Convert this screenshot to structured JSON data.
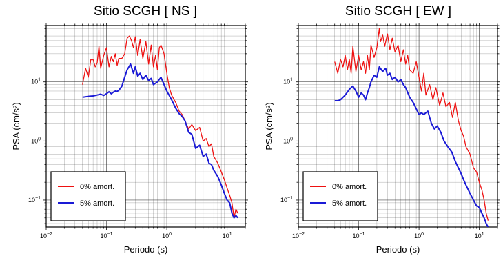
{
  "chart_data": [
    {
      "type": "line",
      "title": "Sitio SCGH [ NS ]",
      "xlabel": "Periodo (s)",
      "ylabel": "PSA (cm/s²)",
      "xscale": "log",
      "yscale": "log",
      "xlim": [
        0.01,
        20
      ],
      "ylim": [
        0.035,
        90
      ],
      "grid": true,
      "legend_position": "bottom-left",
      "x_ticks": [
        {
          "base": "10",
          "exp": "−2"
        },
        {
          "base": "10",
          "exp": "−1"
        },
        {
          "base": "10",
          "exp": "0"
        },
        {
          "base": "10",
          "exp": "1"
        }
      ],
      "y_ticks": [
        {
          "value": 0.1,
          "base": "10",
          "exp": "−1"
        },
        {
          "value": 1,
          "base": "10",
          "exp": "0"
        },
        {
          "value": 10,
          "base": "10",
          "exp": "1"
        }
      ],
      "series": [
        {
          "name": "0% amort.",
          "color": "#ee1111",
          "x": [
            0.04,
            0.045,
            0.05,
            0.055,
            0.06,
            0.065,
            0.07,
            0.075,
            0.08,
            0.09,
            0.1,
            0.11,
            0.12,
            0.13,
            0.14,
            0.15,
            0.16,
            0.18,
            0.2,
            0.22,
            0.24,
            0.26,
            0.28,
            0.3,
            0.33,
            0.36,
            0.4,
            0.45,
            0.5,
            0.55,
            0.6,
            0.65,
            0.7,
            0.75,
            0.8,
            0.9,
            1.0,
            1.1,
            1.2,
            1.4,
            1.6,
            1.8,
            2.0,
            2.3,
            2.6,
            3.0,
            3.5,
            4.0,
            4.5,
            5.0,
            5.5,
            6.0,
            7.0,
            8.0,
            9.0,
            10.0,
            11.0,
            12.0,
            13.0,
            14.0,
            15.0
          ],
          "y": [
            9,
            17,
            12,
            24,
            24,
            18,
            21,
            40,
            17,
            28,
            38,
            18,
            27,
            22,
            30,
            19,
            25,
            25,
            30,
            55,
            60,
            50,
            38,
            58,
            28,
            52,
            25,
            48,
            20,
            42,
            18,
            28,
            16,
            38,
            42,
            30,
            14,
            8,
            6,
            4.5,
            3.2,
            2.8,
            2.2,
            1.6,
            1.9,
            1.5,
            1.7,
            1.0,
            1.1,
            0.8,
            0.9,
            0.55,
            0.42,
            0.3,
            0.22,
            0.16,
            0.12,
            0.09,
            0.05,
            0.07,
            0.06
          ]
        },
        {
          "name": "5% amort.",
          "color": "#1a1ad6",
          "x": [
            0.04,
            0.05,
            0.06,
            0.07,
            0.08,
            0.09,
            0.1,
            0.11,
            0.12,
            0.13,
            0.14,
            0.15,
            0.16,
            0.18,
            0.2,
            0.22,
            0.25,
            0.28,
            0.3,
            0.33,
            0.36,
            0.4,
            0.45,
            0.5,
            0.55,
            0.6,
            0.7,
            0.8,
            0.9,
            1.0,
            1.2,
            1.4,
            1.6,
            1.8,
            2.0,
            2.3,
            2.6,
            3.0,
            3.5,
            4.0,
            4.5,
            5.0,
            5.5,
            6.0,
            7.0,
            8.0,
            9.0,
            10.0,
            11.0,
            12.0,
            13.0,
            14.0,
            15.0
          ],
          "y": [
            5.5,
            5.7,
            5.8,
            6.0,
            6.2,
            5.9,
            6.3,
            6.8,
            6.3,
            6.7,
            7.0,
            6.9,
            7.2,
            8.5,
            12.0,
            16.0,
            20.0,
            14.0,
            18.0,
            12.5,
            14.0,
            11.0,
            13.0,
            10.5,
            11.5,
            9.0,
            10.0,
            12.0,
            9.0,
            7.0,
            5.0,
            3.6,
            2.9,
            2.6,
            2.2,
            1.4,
            1.3,
            0.75,
            0.85,
            0.55,
            0.6,
            0.42,
            0.4,
            0.32,
            0.25,
            0.18,
            0.13,
            0.1,
            0.09,
            0.06,
            0.05,
            0.055,
            0.05
          ]
        }
      ]
    },
    {
      "type": "line",
      "title": "Sitio SCGH [ EW ]",
      "xlabel": "Periodo (s)",
      "ylabel": "PSA (cm/s²)",
      "xscale": "log",
      "yscale": "log",
      "xlim": [
        0.01,
        20
      ],
      "ylim": [
        0.035,
        90
      ],
      "grid": true,
      "legend_position": "bottom-left",
      "x_ticks": [
        {
          "base": "10",
          "exp": "−2"
        },
        {
          "base": "10",
          "exp": "−1"
        },
        {
          "base": "10",
          "exp": "0"
        },
        {
          "base": "10",
          "exp": "1"
        }
      ],
      "y_ticks": [
        {
          "value": 0.1,
          "base": "10",
          "exp": "−1"
        },
        {
          "value": 1,
          "base": "10",
          "exp": "0"
        },
        {
          "value": 10,
          "base": "10",
          "exp": "1"
        }
      ],
      "series": [
        {
          "name": "0% amort.",
          "color": "#ee1111",
          "x": [
            0.04,
            0.045,
            0.05,
            0.055,
            0.06,
            0.065,
            0.07,
            0.075,
            0.08,
            0.09,
            0.1,
            0.11,
            0.12,
            0.13,
            0.14,
            0.15,
            0.16,
            0.18,
            0.2,
            0.22,
            0.23,
            0.25,
            0.27,
            0.3,
            0.33,
            0.36,
            0.4,
            0.45,
            0.5,
            0.55,
            0.6,
            0.65,
            0.7,
            0.8,
            0.9,
            1.0,
            1.1,
            1.2,
            1.3,
            1.5,
            1.7,
            1.9,
            2.2,
            2.5,
            2.8,
            3.2,
            3.6,
            4.0,
            4.5,
            5.0,
            5.5,
            6.0,
            7.0,
            8.0,
            9.0,
            10.0,
            11.0,
            12.0,
            13.0,
            14.0
          ],
          "y": [
            22,
            14,
            24,
            18,
            28,
            16,
            24,
            14,
            40,
            15,
            28,
            16,
            22,
            14,
            28,
            16,
            42,
            26,
            38,
            80,
            48,
            62,
            40,
            65,
            35,
            55,
            32,
            42,
            22,
            35,
            20,
            28,
            16,
            14,
            22,
            12,
            7,
            14,
            6,
            9,
            5,
            8,
            4,
            6.5,
            3.8,
            4.5,
            2.5,
            4.5,
            2.2,
            1.5,
            1.2,
            0.8,
            0.6,
            0.35,
            0.3,
            0.2,
            0.15,
            0.1,
            0.06,
            0.045
          ]
        },
        {
          "name": "5% amort.",
          "color": "#1a1ad6",
          "x": [
            0.04,
            0.045,
            0.05,
            0.055,
            0.06,
            0.07,
            0.08,
            0.09,
            0.1,
            0.11,
            0.12,
            0.13,
            0.14,
            0.15,
            0.16,
            0.18,
            0.2,
            0.22,
            0.25,
            0.28,
            0.3,
            0.33,
            0.36,
            0.4,
            0.45,
            0.5,
            0.55,
            0.6,
            0.7,
            0.8,
            0.9,
            1.0,
            1.1,
            1.2,
            1.4,
            1.6,
            1.8,
            2.0,
            2.3,
            2.6,
            3.0,
            3.5,
            4.0,
            4.5,
            5.0,
            5.5,
            6.0,
            7.0,
            8.0,
            9.0,
            10.0,
            11.0,
            12.0,
            13.0,
            14.0
          ],
          "y": [
            4.8,
            4.8,
            5.0,
            5.5,
            6.0,
            7.5,
            8.5,
            7.0,
            5.5,
            6.5,
            6.0,
            5.0,
            6.5,
            8.0,
            10.0,
            13.0,
            12.0,
            18.0,
            15.0,
            17.0,
            13.0,
            14.0,
            11.0,
            12.0,
            10.0,
            11.0,
            9.0,
            8.0,
            5.5,
            4.5,
            3.5,
            2.8,
            3.0,
            2.8,
            3.2,
            2.0,
            1.6,
            1.8,
            1.4,
            1.0,
            0.8,
            0.65,
            0.45,
            0.35,
            0.28,
            0.22,
            0.18,
            0.13,
            0.1,
            0.08,
            0.075,
            0.06,
            0.05,
            0.04,
            0.035
          ]
        }
      ]
    }
  ]
}
